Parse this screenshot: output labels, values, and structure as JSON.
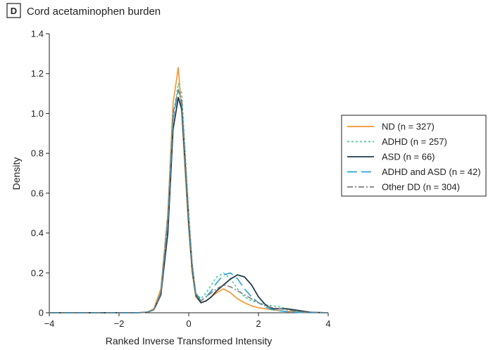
{
  "panel": {
    "letter": "D",
    "title": "Cord acetaminophen burden"
  },
  "chart_data": {
    "type": "line",
    "title": "Cord acetaminophen burden",
    "xlabel": "Ranked Inverse Transformed Intensity",
    "ylabel": "Density",
    "xlim": [
      -4,
      4
    ],
    "ylim": [
      0,
      1.4
    ],
    "xticks": [
      -4,
      -2,
      0,
      2,
      4
    ],
    "xtick_labels": [
      "−4",
      "−2",
      "0",
      "2",
      "4"
    ],
    "yticks": [
      0,
      0.2,
      0.4,
      0.6,
      0.8,
      1.0,
      1.2,
      1.4
    ],
    "ytick_labels": [
      "0",
      "0.2",
      "0.4",
      "0.6",
      "0.8",
      "1.0",
      "1.2",
      "1.4"
    ],
    "legend_position": "right",
    "x": [
      -4,
      -3,
      -2,
      -1.5,
      -1.2,
      -1.0,
      -0.8,
      -0.6,
      -0.45,
      -0.3,
      -0.2,
      -0.1,
      0,
      0.1,
      0.2,
      0.35,
      0.5,
      0.65,
      0.8,
      1.0,
      1.2,
      1.4,
      1.6,
      1.8,
      2.0,
      2.2,
      2.4,
      2.6,
      2.8,
      3.0,
      3.2,
      3.5,
      4.0
    ],
    "series": [
      {
        "name": "ND (n = 327)",
        "color": "#f4922b",
        "dash": "solid",
        "values": [
          0,
          0,
          0,
          0,
          0.002,
          0.02,
          0.12,
          0.5,
          1.05,
          1.23,
          1.0,
          0.7,
          0.42,
          0.2,
          0.08,
          0.05,
          0.06,
          0.08,
          0.1,
          0.12,
          0.1,
          0.07,
          0.05,
          0.035,
          0.025,
          0.02,
          0.015,
          0.01,
          0.007,
          0.005,
          0.003,
          0.001,
          0
        ]
      },
      {
        "name": "ADHD (n = 257)",
        "color": "#4ec59a",
        "dash": "3,3",
        "values": [
          0,
          0,
          0,
          0,
          0.002,
          0.015,
          0.1,
          0.45,
          0.98,
          1.15,
          1.1,
          0.8,
          0.5,
          0.25,
          0.1,
          0.07,
          0.1,
          0.14,
          0.18,
          0.2,
          0.17,
          0.12,
          0.08,
          0.06,
          0.05,
          0.04,
          0.035,
          0.03,
          0.02,
          0.01,
          0.005,
          0.002,
          0
        ]
      },
      {
        "name": "ASD (n = 66)",
        "color": "#1f3b4d",
        "dash": "solid",
        "values": [
          0,
          0,
          0,
          0,
          0.002,
          0.015,
          0.09,
          0.4,
          0.92,
          1.08,
          1.02,
          0.75,
          0.45,
          0.22,
          0.09,
          0.05,
          0.06,
          0.08,
          0.11,
          0.14,
          0.17,
          0.19,
          0.18,
          0.14,
          0.08,
          0.04,
          0.02,
          0.02,
          0.02,
          0.015,
          0.01,
          0.002,
          0
        ]
      },
      {
        "name": "ADHD and ASD (n = 42)",
        "color": "#29a3dc",
        "dash": "14,6",
        "values": [
          0,
          0,
          0,
          0,
          0.002,
          0.015,
          0.1,
          0.45,
          0.97,
          1.12,
          1.06,
          0.78,
          0.48,
          0.24,
          0.1,
          0.06,
          0.08,
          0.11,
          0.15,
          0.19,
          0.2,
          0.17,
          0.12,
          0.08,
          0.05,
          0.03,
          0.015,
          0.01,
          0.006,
          0.003,
          0.001,
          0,
          0
        ]
      },
      {
        "name": "Other DD (n = 304)",
        "color": "#7d7f7a",
        "dash": "8,3,2,3",
        "values": [
          0,
          0,
          0,
          0,
          0.002,
          0.015,
          0.1,
          0.48,
          1.0,
          1.12,
          1.05,
          0.77,
          0.47,
          0.23,
          0.09,
          0.06,
          0.08,
          0.1,
          0.12,
          0.14,
          0.13,
          0.11,
          0.09,
          0.07,
          0.05,
          0.035,
          0.025,
          0.02,
          0.015,
          0.01,
          0.005,
          0.002,
          0
        ]
      }
    ]
  }
}
